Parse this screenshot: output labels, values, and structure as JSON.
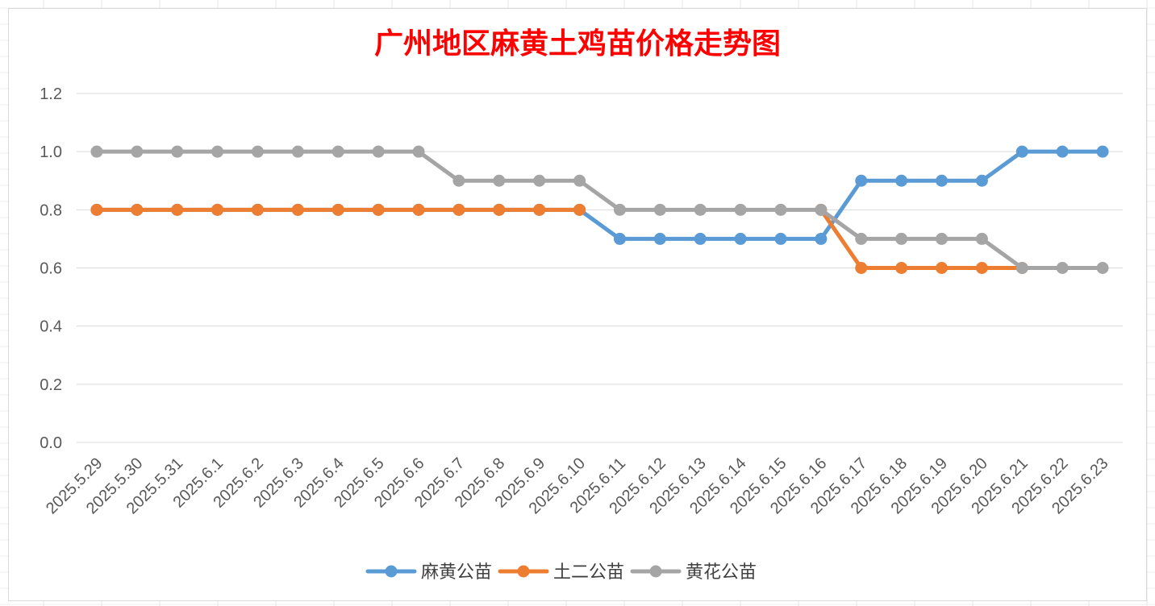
{
  "chart_data": {
    "type": "line",
    "title": "广州地区麻黄土鸡苗价格走势图",
    "xlabel": "",
    "ylabel": "",
    "ylim": [
      0,
      1.2
    ],
    "yticks": [
      "0.0",
      "0.2",
      "0.4",
      "0.6",
      "0.8",
      "1.0",
      "1.2"
    ],
    "grid": true,
    "legend_position": "bottom",
    "categories": [
      "2025.5.29",
      "2025.5.30",
      "2025.5.31",
      "2025.6.1",
      "2025.6.2",
      "2025.6.3",
      "2025.6.4",
      "2025.6.5",
      "2025.6.6",
      "2025.6.7",
      "2025.6.8",
      "2025.6.9",
      "2025.6.10",
      "2025.6.11",
      "2025.6.12",
      "2025.6.13",
      "2025.6.14",
      "2025.6.15",
      "2025.6.16",
      "2025.6.17",
      "2025.6.18",
      "2025.6.19",
      "2025.6.20",
      "2025.6.21",
      "2025.6.22",
      "2025.6.23"
    ],
    "series": [
      {
        "name": "麻黄公苗",
        "color": "#5b9bd5",
        "values": [
          0.8,
          0.8,
          0.8,
          0.8,
          0.8,
          0.8,
          0.8,
          0.8,
          0.8,
          0.8,
          0.8,
          0.8,
          0.8,
          0.7,
          0.7,
          0.7,
          0.7,
          0.7,
          0.7,
          0.9,
          0.9,
          0.9,
          0.9,
          1.0,
          1.0,
          1.0
        ]
      },
      {
        "name": "土二公苗",
        "color": "#ed7d31",
        "values": [
          0.8,
          0.8,
          0.8,
          0.8,
          0.8,
          0.8,
          0.8,
          0.8,
          0.8,
          0.8,
          0.8,
          0.8,
          0.8,
          null,
          null,
          null,
          null,
          null,
          0.8,
          0.6,
          0.6,
          0.6,
          0.6,
          0.6,
          null,
          null
        ]
      },
      {
        "name": "黄花公苗",
        "color": "#a5a5a5",
        "values": [
          1.0,
          1.0,
          1.0,
          1.0,
          1.0,
          1.0,
          1.0,
          1.0,
          1.0,
          0.9,
          0.9,
          0.9,
          0.9,
          0.8,
          0.8,
          0.8,
          0.8,
          0.8,
          0.8,
          0.7,
          0.7,
          0.7,
          0.7,
          0.6,
          0.6,
          0.6
        ]
      }
    ]
  }
}
